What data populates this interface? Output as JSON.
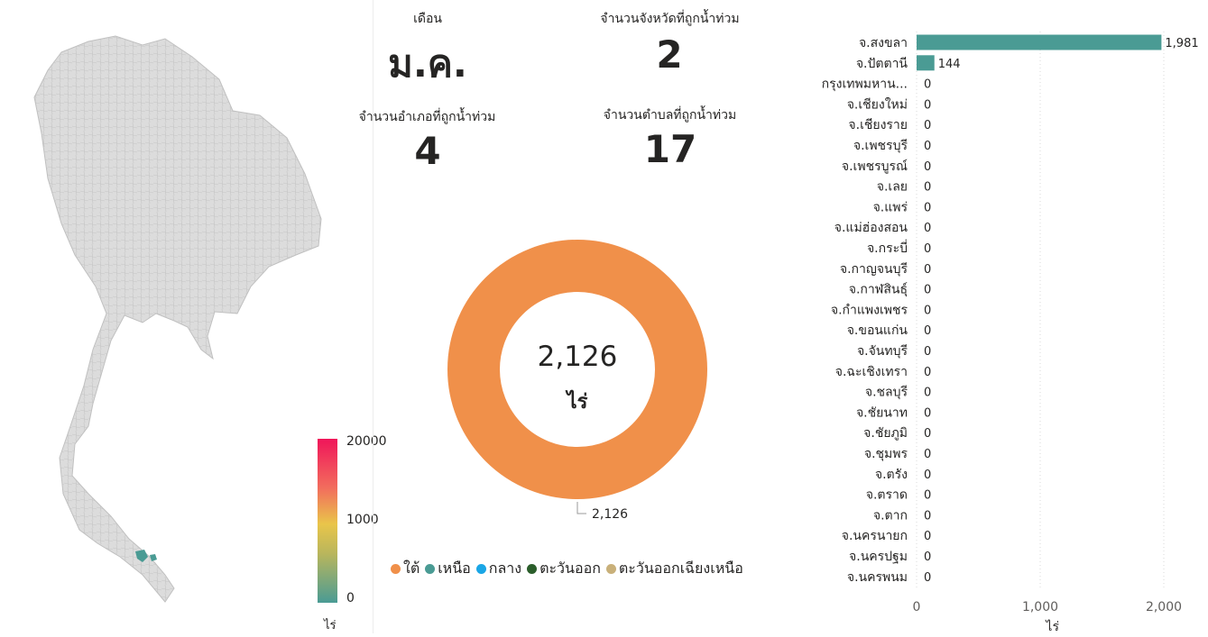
{
  "map": {
    "legend_max": "20000",
    "legend_mid": "1000",
    "legend_min": "0",
    "legend_unit": "ไร่",
    "colors": {
      "base": "#dcdcdc",
      "highlight": "#4a9b94"
    }
  },
  "kpis": {
    "month": {
      "label": "เดือน",
      "value": "ม.ค."
    },
    "provinces": {
      "label": "จำนวนจังหวัดที่ถูกน้ำท่วม",
      "value": "2"
    },
    "districts": {
      "label": "จำนวนอำเภอที่ถูกน้ำท่วม",
      "value": "4"
    },
    "subdistricts": {
      "label": "จำนวนตำบลที่ถูกน้ำท่วม",
      "value": "17"
    }
  },
  "donut": {
    "center_value": "2,126",
    "center_unit": "ไร่",
    "slice_label": "2,126",
    "legend": [
      {
        "label": "ใต้",
        "color": "#f0904a"
      },
      {
        "label": "เหนือ",
        "color": "#4a9b94"
      },
      {
        "label": "กลาง",
        "color": "#1aa6e6"
      },
      {
        "label": "ตะวันออก",
        "color": "#2b5e2b"
      },
      {
        "label": "ตะวันออกเฉียงเหนือ",
        "color": "#c9b07a"
      }
    ]
  },
  "chart_data": [
    {
      "type": "pie",
      "categories": [
        "ใต้",
        "เหนือ",
        "กลาง",
        "ตะวันออก",
        "ตะวันออกเฉียงเหนือ"
      ],
      "values": [
        2126,
        0,
        0,
        0,
        0
      ],
      "colors": [
        "#f0904a",
        "#4a9b94",
        "#1aa6e6",
        "#2b5e2b",
        "#c9b07a"
      ],
      "hole": "donut"
    },
    {
      "type": "bar",
      "orientation": "horizontal",
      "categories": [
        "จ.สงขลา",
        "จ.ปัตตานี",
        "กรุงเทพมหาน...",
        "จ.เชียงใหม่",
        "จ.เชียงราย",
        "จ.เพชรบุรี",
        "จ.เพชรบูรณ์",
        "จ.เลย",
        "จ.แพร่",
        "จ.แม่ฮ่องสอน",
        "จ.กระบี่",
        "จ.กาญจนบุรี",
        "จ.กาฬสินธุ์",
        "จ.กำแพงเพชร",
        "จ.ขอนแก่น",
        "จ.จันทบุรี",
        "จ.ฉะเชิงเทรา",
        "จ.ชลบุรี",
        "จ.ชัยนาท",
        "จ.ชัยภูมิ",
        "จ.ชุมพร",
        "จ.ตรัง",
        "จ.ตราด",
        "จ.ตาก",
        "จ.นครนายก",
        "จ.นครปฐม",
        "จ.นครพนม"
      ],
      "values": [
        1981,
        144,
        0,
        0,
        0,
        0,
        0,
        0,
        0,
        0,
        0,
        0,
        0,
        0,
        0,
        0,
        0,
        0,
        0,
        0,
        0,
        0,
        0,
        0,
        0,
        0,
        0
      ],
      "value_labels": [
        "1,981",
        "144",
        "0",
        "0",
        "0",
        "0",
        "0",
        "0",
        "0",
        "0",
        "0",
        "0",
        "0",
        "0",
        "0",
        "0",
        "0",
        "0",
        "0",
        "0",
        "0",
        "0",
        "0",
        "0",
        "0",
        "0",
        "0"
      ],
      "xlim": [
        0,
        2000
      ],
      "xticks": [
        "0",
        "1,000",
        "2,000"
      ],
      "xlabel": "ไร่",
      "grid": true,
      "bar_color": "#4a9b94"
    }
  ]
}
